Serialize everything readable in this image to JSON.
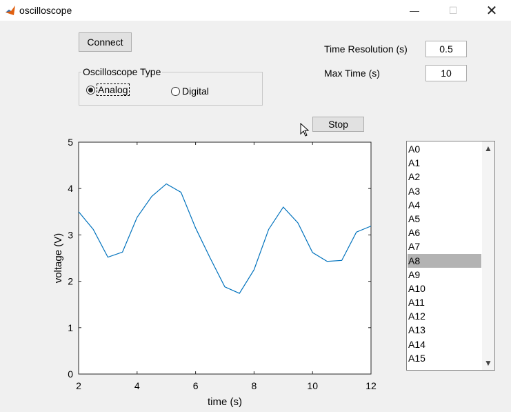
{
  "window": {
    "title": "oscilloscope",
    "minimize_glyph": "—",
    "maximize_glyph": "☐",
    "close_glyph": "✕",
    "icon": "matlab-logo-icon"
  },
  "controls": {
    "connect_label": "Connect",
    "stop_label": "Stop",
    "group_title": "Oscilloscope Type",
    "radio_options": [
      {
        "label": "Analog",
        "selected": true
      },
      {
        "label": "Digital",
        "selected": false
      }
    ],
    "time_resolution_label": "Time Resolution (s)",
    "time_resolution_value": "0.5",
    "max_time_label": "Max Time (s)",
    "max_time_value": "10"
  },
  "channels": {
    "items": [
      "A0",
      "A1",
      "A2",
      "A3",
      "A4",
      "A5",
      "A6",
      "A7",
      "A8",
      "A9",
      "A10",
      "A11",
      "A12",
      "A13",
      "A14",
      "A15"
    ],
    "selected": "A8",
    "scroll_up_glyph": "▲",
    "scroll_down_glyph": "▼"
  },
  "chart_data": {
    "type": "line",
    "xlabel": "time (s)",
    "ylabel": "voltage (V)",
    "xlim": [
      2,
      12
    ],
    "ylim": [
      0,
      5
    ],
    "xticks": [
      2,
      4,
      6,
      8,
      10,
      12
    ],
    "yticks": [
      0,
      1,
      2,
      3,
      4,
      5
    ],
    "grid": false,
    "series": [
      {
        "color": "#0072bd",
        "x": [
          2,
          2.5,
          3,
          3.5,
          4,
          4.5,
          5,
          5.5,
          6,
          6.5,
          7,
          7.5,
          8,
          8.5,
          9,
          9.5,
          10,
          10.5,
          11,
          11.5,
          12
        ],
        "y": [
          3.5,
          3.12,
          2.52,
          2.63,
          3.38,
          3.83,
          4.1,
          3.92,
          3.15,
          2.5,
          1.88,
          1.74,
          2.25,
          3.12,
          3.6,
          3.26,
          2.62,
          2.43,
          2.45,
          3.06,
          3.19
        ]
      }
    ]
  }
}
